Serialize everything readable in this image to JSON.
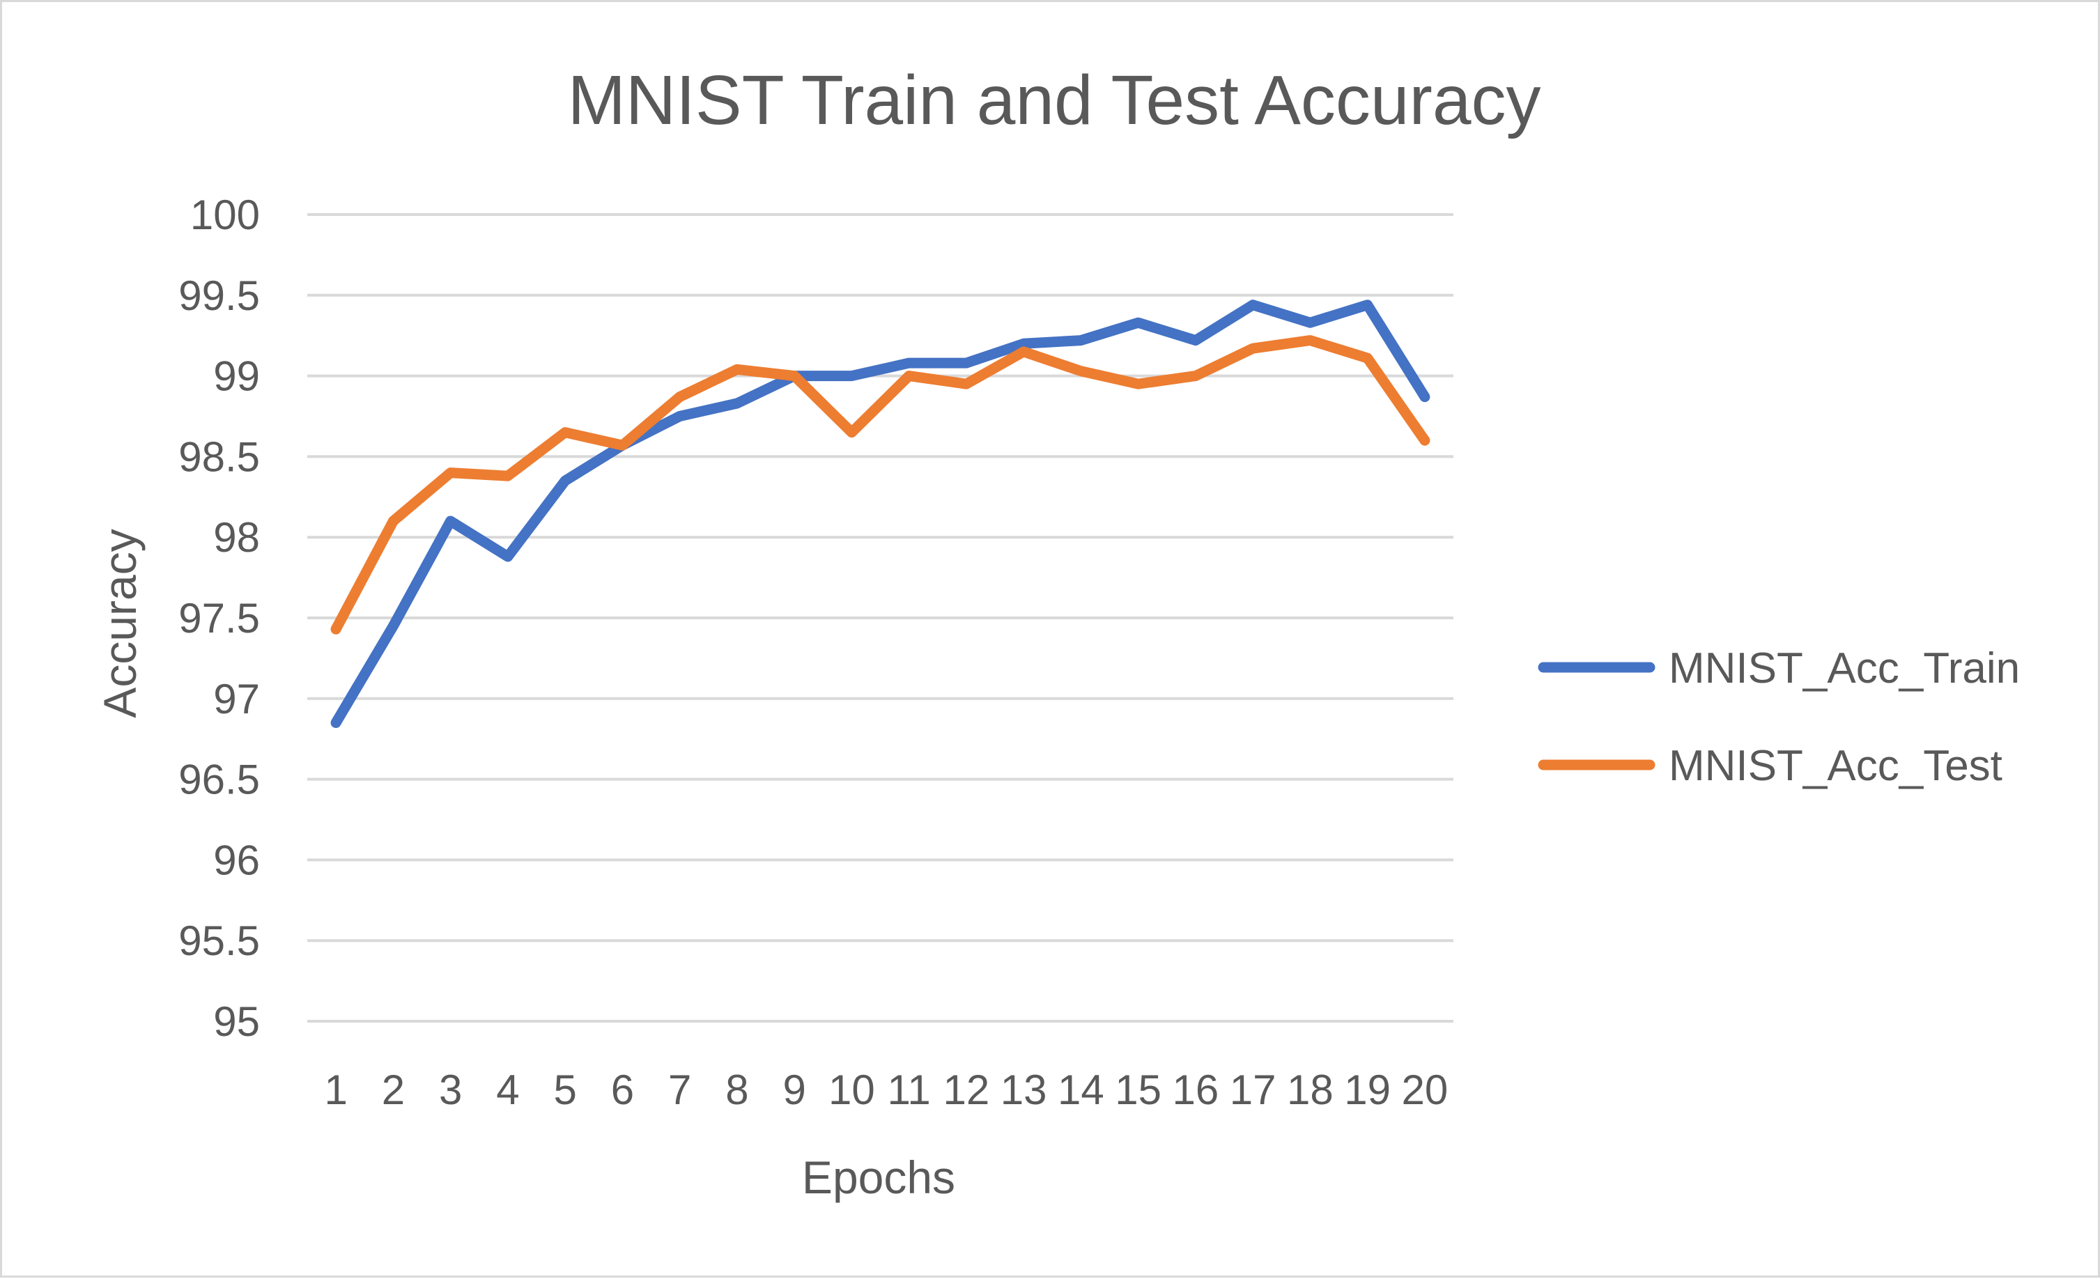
{
  "chart_data": {
    "type": "line",
    "title": "MNIST Train and Test Accuracy",
    "xlabel": "Epochs",
    "ylabel": "Accuracy",
    "categories": [
      "1",
      "2",
      "3",
      "4",
      "5",
      "6",
      "7",
      "8",
      "9",
      "10",
      "11",
      "12",
      "13",
      "14",
      "15",
      "16",
      "17",
      "18",
      "19",
      "20"
    ],
    "y_ticks": [
      "95",
      "95.5",
      "96",
      "96.5",
      "97",
      "97.5",
      "98",
      "98.5",
      "99",
      "99.5",
      "100"
    ],
    "ylim": [
      95,
      100
    ],
    "grid": true,
    "legend_position": "right",
    "series": [
      {
        "name": "MNIST_Acc_Train",
        "color": "#4472c4",
        "values": [
          96.85,
          97.45,
          98.1,
          97.88,
          98.35,
          98.57,
          98.75,
          98.83,
          99.0,
          99.0,
          99.08,
          99.08,
          99.2,
          99.22,
          99.33,
          99.22,
          99.44,
          99.33,
          99.44,
          98.87
        ]
      },
      {
        "name": "MNIST_Acc_Test",
        "color": "#ed7d31",
        "values": [
          97.43,
          98.1,
          98.4,
          98.38,
          98.65,
          98.57,
          98.87,
          99.04,
          99.0,
          98.65,
          99.0,
          98.95,
          99.15,
          99.03,
          98.95,
          99.0,
          99.17,
          99.22,
          99.11,
          98.6
        ]
      }
    ]
  }
}
